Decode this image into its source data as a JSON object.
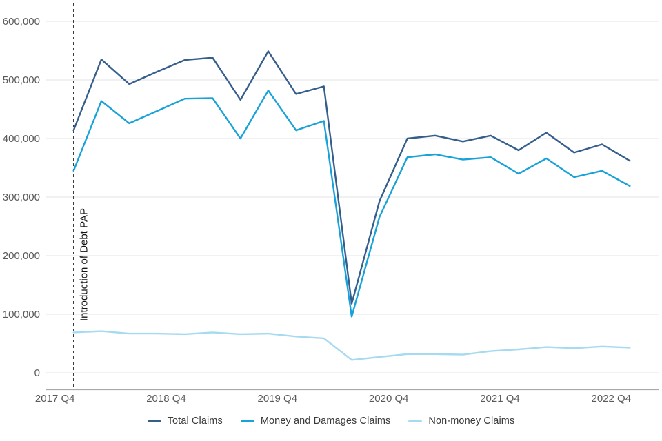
{
  "chart_data": {
    "type": "line",
    "x": [
      "2017 Q4",
      "2018 Q1",
      "2018 Q2",
      "2018 Q3",
      "2018 Q4",
      "2019 Q1",
      "2019 Q2",
      "2019 Q3",
      "2019 Q4",
      "2020 Q1",
      "2020 Q2",
      "2020 Q3",
      "2020 Q4",
      "2021 Q1",
      "2021 Q2",
      "2021 Q3",
      "2021 Q4",
      "2022 Q1",
      "2022 Q2",
      "2022 Q3",
      "2022 Q4"
    ],
    "series": [
      {
        "name": "Total Claims",
        "color": "#355e8d",
        "values": [
          414000,
          535000,
          493000,
          514000,
          534000,
          538000,
          466000,
          549000,
          476000,
          489000,
          118000,
          293000,
          400000,
          405000,
          395000,
          405000,
          380000,
          410000,
          376000,
          390000,
          362000
        ]
      },
      {
        "name": "Money and Damages Claims",
        "color": "#17a2d9",
        "values": [
          345000,
          464000,
          426000,
          447000,
          468000,
          469000,
          400000,
          482000,
          414000,
          430000,
          96000,
          266000,
          368000,
          373000,
          364000,
          368000,
          340000,
          366000,
          334000,
          345000,
          319000
        ]
      },
      {
        "name": "Non-money Claims",
        "color": "#a5daf0",
        "values": [
          69000,
          71000,
          67000,
          67000,
          66000,
          69000,
          66000,
          67000,
          62000,
          59000,
          22000,
          27000,
          32000,
          32000,
          31000,
          37000,
          40000,
          44000,
          42000,
          45000,
          43000
        ]
      }
    ],
    "ylim": [
      0,
      600000
    ],
    "ytick_step": 100000,
    "yticks": [
      {
        "value": 0,
        "label": "0"
      },
      {
        "value": 100000,
        "label": "100,000"
      },
      {
        "value": 200000,
        "label": "200,000"
      },
      {
        "value": 300000,
        "label": "300,000"
      },
      {
        "value": 400000,
        "label": "400,000"
      },
      {
        "value": 500000,
        "label": "500,000"
      },
      {
        "value": 600000,
        "label": "600,000"
      }
    ],
    "xtick_labels": [
      {
        "label": "2017 Q4",
        "index": 0
      },
      {
        "label": "2018 Q4",
        "index": 4
      },
      {
        "label": "2019 Q4",
        "index": 8
      },
      {
        "label": "2020 Q4",
        "index": 12
      },
      {
        "label": "2021 Q4",
        "index": 16
      },
      {
        "label": "2022 Q4",
        "index": 20
      }
    ],
    "annotation": {
      "text": "Introduction of Debt PAP",
      "x_index": 0,
      "marker": "dashed-vertical-line"
    },
    "grid": "horizontal",
    "legend_position": "bottom",
    "colors": {
      "gridline": "#e3e3e3",
      "axis_line": "#a9a9a9",
      "tick_text": "#5a5a5a",
      "annotation_text": "#141414",
      "reference_line": "#3c3c3c",
      "background": "#ffffff"
    }
  }
}
